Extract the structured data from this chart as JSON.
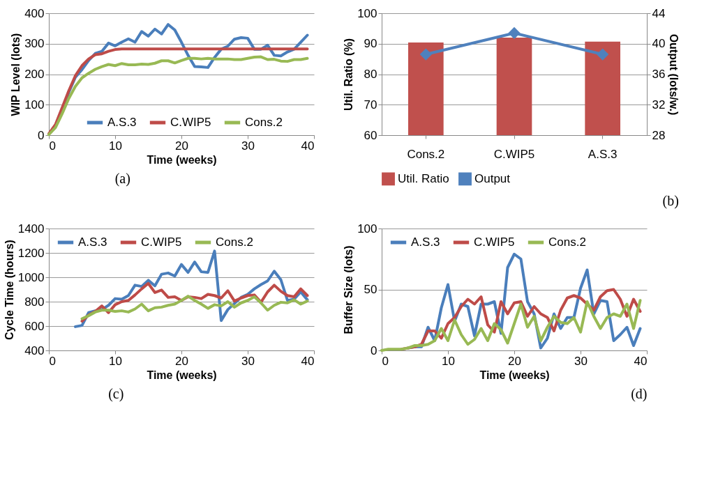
{
  "chart_data": [
    {
      "type": "line",
      "xlabel": "Time (weeks)",
      "ylabel": "WIP Level (lots)",
      "annotations": [
        "(a)"
      ],
      "xlim": [
        0,
        40
      ],
      "xticks": [
        0,
        10,
        20,
        30,
        40
      ],
      "ylim": [
        0,
        400
      ],
      "yticks": [
        0,
        100,
        200,
        300,
        400
      ],
      "grid": "y",
      "legend": "bottom right",
      "x": [
        0,
        1,
        2,
        3,
        4,
        5,
        6,
        7,
        8,
        9,
        10,
        11,
        12,
        13,
        14,
        15,
        16,
        17,
        18,
        19,
        20,
        21,
        22,
        23,
        24,
        25,
        26,
        27,
        28,
        29,
        30,
        31,
        32,
        33,
        34,
        35,
        36,
        37,
        38,
        39
      ],
      "series": [
        {
          "name": "A.S.3",
          "color": "#4a7ebb",
          "values": [
            null,
            null,
            80,
            140,
            190,
            215,
            245,
            268,
            275,
            302,
            293,
            305,
            316,
            305,
            340,
            325,
            348,
            332,
            363,
            345,
            305,
            262,
            225,
            224,
            222,
            255,
            282,
            292,
            315,
            320,
            318,
            282,
            282,
            295,
            262,
            260,
            273,
            282,
            305,
            328
          ]
        },
        {
          "name": "C.WIP5",
          "color": "#be4b48",
          "values": [
            5,
            35,
            90,
            145,
            195,
            228,
            250,
            264,
            267,
            275,
            281,
            283,
            283,
            283,
            283,
            283,
            283,
            283,
            283,
            283,
            283,
            283,
            283,
            283,
            283,
            283,
            283,
            283,
            283,
            283,
            283,
            283,
            283,
            283,
            283,
            283,
            283,
            283,
            283,
            283
          ]
        },
        {
          "name": "Cons.2",
          "color": "#98b954",
          "values": [
            2,
            25,
            70,
            120,
            160,
            188,
            203,
            216,
            225,
            232,
            228,
            235,
            231,
            231,
            233,
            232,
            236,
            244,
            244,
            237,
            245,
            252,
            252,
            250,
            252,
            250,
            250,
            250,
            248,
            248,
            252,
            256,
            257,
            248,
            249,
            243,
            242,
            248,
            248,
            252
          ]
        }
      ]
    },
    {
      "type": "bar",
      "ylabel": "Util. Ratio (%)",
      "y2label": "Output (lots/w.)",
      "annotations": [
        "(b)"
      ],
      "categories": [
        "Cons.2",
        "C.WIP5",
        "A.S.3"
      ],
      "ylim": [
        60,
        100
      ],
      "yticks": [
        60,
        70,
        80,
        90,
        100
      ],
      "y2lim": [
        28,
        44
      ],
      "y2ticks": [
        28,
        32,
        36,
        40,
        44
      ],
      "grid": "y",
      "legend": "bottom",
      "series": [
        {
          "name": "Util. Ratio",
          "type": "bar",
          "color": "#c0504d",
          "values": [
            90.4,
            92,
            90.7
          ]
        },
        {
          "name": "Output",
          "type": "line",
          "axis": "y2",
          "marker": "diamond",
          "color": "#4f81bd",
          "values": [
            38.6,
            41.4,
            38.6
          ]
        }
      ]
    },
    {
      "type": "line",
      "xlabel": "Time (weeks)",
      "ylabel": "Cycle Time (hours)",
      "annotations": [
        "(c)"
      ],
      "xlim": [
        0,
        40
      ],
      "xticks": [
        0,
        10,
        20,
        30,
        40
      ],
      "ylim": [
        400,
        1400
      ],
      "yticks": [
        400,
        600,
        800,
        1000,
        1200,
        1400
      ],
      "grid": "y",
      "legend": "top",
      "series": [
        {
          "name": "A.S.3",
          "color": "#4a7ebb",
          "x": [
            4,
            5,
            6,
            7,
            8,
            9,
            10,
            11,
            12,
            13,
            14,
            15,
            16,
            17,
            18,
            19,
            20,
            21,
            22,
            23,
            24,
            25,
            26,
            27,
            28,
            29,
            30,
            31,
            32,
            33,
            34,
            35,
            36,
            37,
            38,
            39
          ],
          "values": [
            595,
            605,
            710,
            725,
            735,
            770,
            825,
            820,
            850,
            935,
            925,
            975,
            930,
            1025,
            1035,
            1010,
            1105,
            1040,
            1125,
            1045,
            1040,
            1215,
            645,
            735,
            785,
            835,
            860,
            905,
            940,
            970,
            1050,
            980,
            810,
            820,
            880,
            815
          ]
        },
        {
          "name": "C.WIP5",
          "color": "#be4b48",
          "x": [
            5,
            6,
            7,
            8,
            9,
            10,
            11,
            12,
            13,
            14,
            15,
            16,
            17,
            18,
            19,
            20,
            21,
            22,
            23,
            24,
            25,
            26,
            27,
            28,
            29,
            30,
            31,
            32,
            33,
            34,
            35,
            36,
            37,
            38,
            39
          ],
          "values": [
            640,
            690,
            720,
            765,
            710,
            775,
            800,
            810,
            855,
            905,
            950,
            875,
            895,
            835,
            840,
            810,
            840,
            835,
            825,
            860,
            850,
            830,
            890,
            805,
            830,
            850,
            855,
            795,
            880,
            935,
            885,
            850,
            840,
            905,
            850
          ]
        },
        {
          "name": "Cons.2",
          "color": "#98b954",
          "x": [
            5,
            6,
            7,
            8,
            9,
            10,
            11,
            12,
            13,
            14,
            15,
            16,
            17,
            18,
            19,
            20,
            21,
            22,
            23,
            24,
            25,
            26,
            27,
            28,
            29,
            30,
            31,
            32,
            33,
            34,
            35,
            36,
            37,
            38,
            39
          ],
          "values": [
            660,
            685,
            715,
            730,
            730,
            720,
            725,
            715,
            740,
            780,
            725,
            750,
            755,
            770,
            780,
            810,
            845,
            810,
            780,
            745,
            775,
            765,
            800,
            755,
            790,
            810,
            840,
            790,
            730,
            770,
            795,
            790,
            815,
            780,
            805
          ]
        }
      ]
    },
    {
      "type": "line",
      "xlabel": "Time (weeks)",
      "ylabel": "Buffer Size (lots)",
      "annotations": [
        "(d)"
      ],
      "xlim": [
        0,
        40
      ],
      "xticks": [
        0,
        10,
        20,
        30,
        40
      ],
      "ylim": [
        0,
        100
      ],
      "yticks": [
        0,
        50,
        100
      ],
      "grid": "y",
      "legend": "top",
      "x": [
        0,
        1,
        2,
        3,
        4,
        5,
        6,
        7,
        8,
        9,
        10,
        11,
        12,
        13,
        14,
        15,
        16,
        17,
        18,
        19,
        20,
        21,
        22,
        23,
        24,
        25,
        26,
        27,
        28,
        29,
        30,
        31,
        32,
        33,
        34,
        35,
        36,
        37,
        38,
        39
      ],
      "series": [
        {
          "name": "A.S.3",
          "color": "#4a7ebb",
          "values": [
            null,
            null,
            null,
            null,
            2,
            3,
            3,
            19,
            8,
            35,
            54,
            24,
            38,
            36,
            12,
            38,
            38,
            40,
            14,
            68,
            79,
            75,
            40,
            30,
            2,
            10,
            30,
            18,
            27,
            27,
            51,
            66,
            30,
            41,
            40,
            8,
            13,
            19,
            4,
            18
          ]
        },
        {
          "name": "C.WIP5",
          "color": "#be4b48",
          "values": [
            null,
            null,
            null,
            1,
            2,
            3,
            5,
            16,
            16,
            10,
            22,
            27,
            36,
            42,
            38,
            44,
            21,
            15,
            40,
            30,
            39,
            40,
            28,
            36,
            30,
            27,
            16,
            33,
            43,
            45,
            43,
            38,
            33,
            44,
            49,
            50,
            42,
            28,
            42,
            32
          ]
        },
        {
          "name": "Cons.2",
          "color": "#98b954",
          "values": [
            0,
            1,
            1,
            1,
            2,
            4,
            4,
            5,
            8,
            18,
            8,
            25,
            13,
            5,
            9,
            18,
            8,
            22,
            17,
            6,
            22,
            38,
            19,
            28,
            8,
            19,
            28,
            23,
            22,
            27,
            15,
            40,
            28,
            18,
            27,
            30,
            28,
            38,
            18,
            41
          ]
        }
      ]
    }
  ]
}
